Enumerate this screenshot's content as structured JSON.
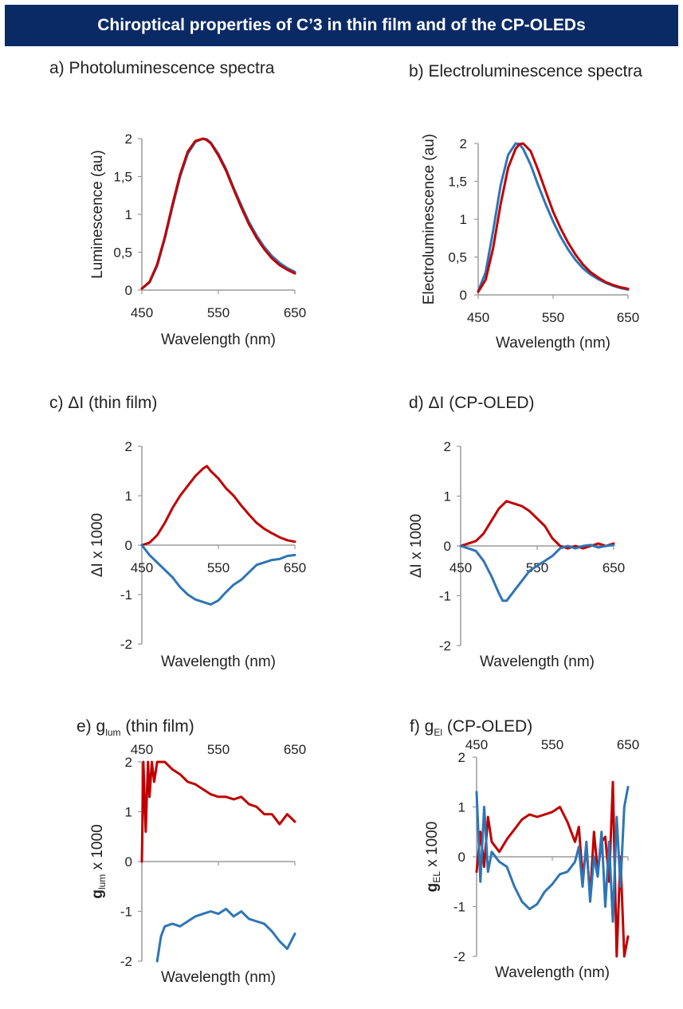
{
  "header": {
    "title": "Chiroptical properties of C’3 in thin film and of the CP-OLEDs"
  },
  "colors": {
    "red": "#c00000",
    "blue": "#2e75b6",
    "banner": "#0a2a66",
    "axis": "#9a9a9a"
  },
  "chart_data": [
    {
      "id": "a",
      "type": "line",
      "title": "a) Photoluminescence spectra",
      "xlabel": "Wavelength (nm)",
      "ylabel": "Luminescence (au)",
      "xlim": [
        450,
        650
      ],
      "ylim": [
        0,
        2
      ],
      "xticks": [
        "450",
        "550",
        "650"
      ],
      "yticks": [
        "0",
        "0,5",
        "1",
        "1,5",
        "2"
      ],
      "series": [
        {
          "color": "blue",
          "x": [
            450,
            460,
            470,
            480,
            490,
            500,
            510,
            520,
            530,
            535,
            540,
            550,
            560,
            570,
            580,
            590,
            600,
            610,
            620,
            630,
            640,
            650
          ],
          "y": [
            0.02,
            0.1,
            0.32,
            0.68,
            1.1,
            1.5,
            1.8,
            1.96,
            2.0,
            1.99,
            1.95,
            1.8,
            1.6,
            1.35,
            1.12,
            0.9,
            0.72,
            0.57,
            0.45,
            0.36,
            0.29,
            0.24
          ]
        },
        {
          "color": "red",
          "x": [
            450,
            460,
            470,
            480,
            490,
            500,
            510,
            520,
            530,
            535,
            540,
            550,
            560,
            570,
            580,
            590,
            600,
            610,
            620,
            630,
            640,
            650
          ],
          "y": [
            0.02,
            0.11,
            0.34,
            0.7,
            1.13,
            1.53,
            1.83,
            1.97,
            2.0,
            1.98,
            1.94,
            1.78,
            1.58,
            1.33,
            1.09,
            0.87,
            0.69,
            0.54,
            0.42,
            0.33,
            0.27,
            0.22
          ]
        }
      ]
    },
    {
      "id": "b",
      "type": "line",
      "title": "b) Electroluminescence spectra",
      "xlabel": "Wavelength (nm)",
      "ylabel": "Electroluminescence (au)",
      "xlim": [
        450,
        650
      ],
      "ylim": [
        0,
        2
      ],
      "xticks": [
        "450",
        "550",
        "650"
      ],
      "yticks": [
        "0",
        "0,5",
        "1",
        "1,5",
        "2"
      ],
      "series": [
        {
          "color": "blue",
          "x": [
            450,
            460,
            470,
            480,
            490,
            500,
            505,
            510,
            520,
            530,
            540,
            550,
            560,
            570,
            580,
            590,
            600,
            610,
            620,
            630,
            640,
            650
          ],
          "y": [
            0.05,
            0.3,
            0.85,
            1.45,
            1.85,
            2.0,
            1.99,
            1.93,
            1.72,
            1.45,
            1.2,
            0.97,
            0.77,
            0.6,
            0.46,
            0.35,
            0.27,
            0.21,
            0.16,
            0.12,
            0.09,
            0.07
          ]
        },
        {
          "color": "red",
          "x": [
            450,
            460,
            470,
            480,
            490,
            500,
            505,
            510,
            520,
            530,
            540,
            550,
            560,
            570,
            580,
            590,
            600,
            610,
            620,
            630,
            640,
            650
          ],
          "y": [
            0.04,
            0.2,
            0.62,
            1.2,
            1.68,
            1.93,
            1.99,
            2.0,
            1.9,
            1.65,
            1.37,
            1.1,
            0.88,
            0.69,
            0.53,
            0.4,
            0.3,
            0.23,
            0.17,
            0.13,
            0.1,
            0.08
          ]
        }
      ]
    },
    {
      "id": "c",
      "type": "line",
      "title": "c) ΔI (thin film)",
      "xlabel": "Wavelength (nm)",
      "ylabel": "ΔI x 1000",
      "xlim": [
        450,
        650
      ],
      "ylim": [
        -2,
        2
      ],
      "xticks": [
        "450",
        "550",
        "650"
      ],
      "yticks": [
        "-2",
        "-1",
        "0",
        "1",
        "2"
      ],
      "series": [
        {
          "color": "red",
          "x": [
            450,
            460,
            470,
            480,
            490,
            500,
            510,
            520,
            530,
            535,
            540,
            550,
            560,
            570,
            580,
            590,
            600,
            610,
            620,
            630,
            640,
            650
          ],
          "y": [
            0.0,
            0.05,
            0.2,
            0.45,
            0.75,
            1.0,
            1.2,
            1.4,
            1.55,
            1.6,
            1.5,
            1.35,
            1.15,
            1.0,
            0.8,
            0.62,
            0.45,
            0.33,
            0.24,
            0.16,
            0.1,
            0.07
          ]
        },
        {
          "color": "blue",
          "x": [
            450,
            460,
            470,
            480,
            490,
            500,
            510,
            520,
            530,
            540,
            550,
            560,
            570,
            580,
            590,
            600,
            610,
            620,
            630,
            640,
            650
          ],
          "y": [
            0.0,
            -0.2,
            -0.35,
            -0.5,
            -0.65,
            -0.85,
            -1.0,
            -1.1,
            -1.15,
            -1.2,
            -1.12,
            -0.95,
            -0.8,
            -0.7,
            -0.55,
            -0.4,
            -0.35,
            -0.3,
            -0.28,
            -0.22,
            -0.2
          ]
        }
      ]
    },
    {
      "id": "d",
      "type": "line",
      "title": "d) ΔI (CP-OLED)",
      "xlabel": "Wavelength (nm)",
      "ylabel": "ΔI x 1000",
      "xlim": [
        450,
        650
      ],
      "ylim": [
        -2,
        2
      ],
      "xticks": [
        "450",
        "550",
        "650"
      ],
      "yticks": [
        "-2",
        "-1",
        "0",
        "1",
        "2"
      ],
      "series": [
        {
          "color": "red",
          "x": [
            450,
            460,
            470,
            480,
            490,
            500,
            510,
            520,
            530,
            540,
            550,
            560,
            570,
            580,
            590,
            600,
            610,
            620,
            630,
            640,
            650
          ],
          "y": [
            0.0,
            0.05,
            0.1,
            0.25,
            0.5,
            0.75,
            0.9,
            0.85,
            0.8,
            0.7,
            0.55,
            0.4,
            0.15,
            0.0,
            -0.05,
            0.0,
            -0.05,
            0.0,
            0.05,
            0.0,
            0.05
          ]
        },
        {
          "color": "blue",
          "x": [
            450,
            460,
            470,
            480,
            490,
            500,
            505,
            510,
            520,
            530,
            540,
            550,
            560,
            570,
            580,
            590,
            600,
            610,
            620,
            630,
            640,
            650
          ],
          "y": [
            0.0,
            -0.05,
            -0.1,
            -0.3,
            -0.6,
            -0.95,
            -1.1,
            -1.1,
            -0.9,
            -0.7,
            -0.5,
            -0.4,
            -0.3,
            -0.2,
            -0.05,
            0.0,
            -0.05,
            0.0,
            0.02,
            -0.03,
            0.0,
            0.02
          ]
        }
      ]
    },
    {
      "id": "e",
      "type": "line",
      "title": "",
      "xlabel": "Wavelength (nm)",
      "ylabel": "",
      "xlim": [
        450,
        650
      ],
      "ylim": [
        -2,
        2
      ],
      "xticks": [
        "450",
        "550",
        "650"
      ],
      "yticks": [
        "-2",
        "-1",
        "0",
        "1",
        "2"
      ],
      "series": [
        {
          "color": "red",
          "x": [
            450,
            452,
            455,
            458,
            460,
            463,
            466,
            470,
            480,
            490,
            500,
            510,
            520,
            530,
            540,
            550,
            560,
            570,
            580,
            590,
            600,
            610,
            620,
            630,
            640,
            650
          ],
          "y": [
            0.0,
            2.0,
            0.6,
            2.0,
            1.3,
            2.0,
            1.6,
            2.0,
            2.0,
            1.85,
            1.75,
            1.6,
            1.55,
            1.45,
            1.35,
            1.3,
            1.3,
            1.25,
            1.3,
            1.15,
            1.1,
            0.95,
            0.95,
            0.75,
            0.95,
            0.8
          ]
        },
        {
          "color": "blue",
          "x": [
            470,
            475,
            480,
            490,
            500,
            510,
            520,
            530,
            540,
            550,
            560,
            570,
            580,
            590,
            600,
            610,
            620,
            630,
            640,
            650
          ],
          "y": [
            -2.0,
            -1.5,
            -1.3,
            -1.25,
            -1.3,
            -1.2,
            -1.1,
            -1.05,
            -1.0,
            -1.05,
            -0.95,
            -1.1,
            -1.0,
            -1.15,
            -1.2,
            -1.25,
            -1.4,
            -1.6,
            -1.75,
            -1.45
          ]
        }
      ]
    },
    {
      "id": "f",
      "type": "line",
      "title": "",
      "xlabel": "Wavelength (nm)",
      "ylabel": "",
      "xlim": [
        450,
        650
      ],
      "ylim": [
        -2,
        2
      ],
      "xticks": [
        "450",
        "550",
        "650"
      ],
      "yticks": [
        "-2",
        "-1",
        "0",
        "1",
        "2"
      ],
      "series": [
        {
          "color": "red",
          "x": [
            450,
            455,
            460,
            465,
            470,
            480,
            490,
            500,
            510,
            520,
            530,
            540,
            550,
            560,
            570,
            580,
            585,
            590,
            595,
            600,
            605,
            610,
            615,
            620,
            625,
            630,
            635,
            640,
            645,
            650
          ],
          "y": [
            -0.3,
            0.5,
            -0.2,
            0.8,
            0.3,
            0.1,
            0.35,
            0.55,
            0.75,
            0.85,
            0.8,
            0.85,
            0.9,
            1.0,
            0.7,
            0.3,
            0.6,
            -0.4,
            0.2,
            -0.8,
            0.5,
            -0.3,
            0.3,
            0.4,
            -0.5,
            1.5,
            -2.0,
            0.0,
            -2.0,
            -1.6
          ]
        },
        {
          "color": "blue",
          "x": [
            450,
            455,
            460,
            465,
            470,
            480,
            490,
            500,
            510,
            520,
            530,
            540,
            550,
            560,
            570,
            580,
            585,
            590,
            595,
            600,
            605,
            610,
            615,
            620,
            625,
            630,
            635,
            640,
            645,
            650
          ],
          "y": [
            1.3,
            -0.5,
            1.0,
            -0.3,
            0.1,
            -0.1,
            -0.2,
            -0.6,
            -0.9,
            -1.05,
            -0.95,
            -0.7,
            -0.55,
            -0.35,
            -0.3,
            -0.1,
            0.2,
            -0.6,
            0.3,
            -0.9,
            0.0,
            -0.4,
            0.5,
            -1.0,
            0.3,
            -1.3,
            0.8,
            -0.6,
            1.0,
            1.4
          ]
        }
      ]
    }
  ],
  "panel_e_title": {
    "prefix": "e) g",
    "sub": "lum",
    "suffix": " (thin film)"
  },
  "panel_f_title": {
    "prefix": "f) g",
    "sub": "El",
    "suffix": " (CP-OLED)"
  },
  "panel_e_ylabel": {
    "g": "g",
    "sub": "lum",
    "rest": " x 1000"
  },
  "panel_f_ylabel": {
    "g": "g",
    "sub": "EL",
    "rest": " x 1000"
  }
}
